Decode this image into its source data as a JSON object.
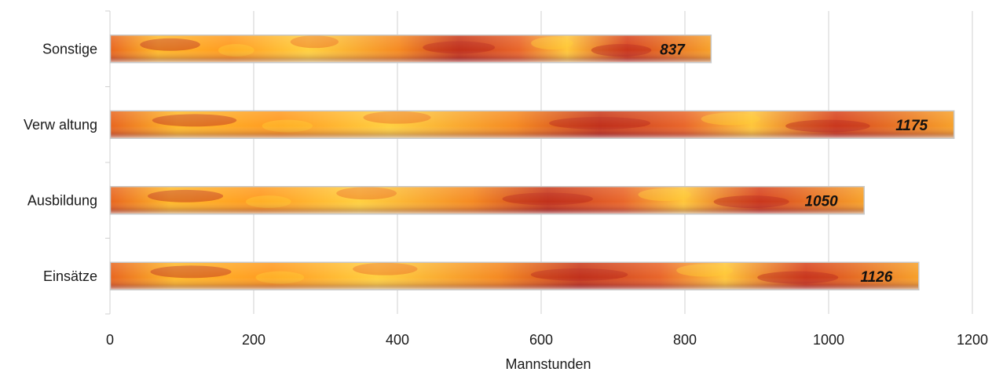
{
  "chart_data": {
    "type": "bar",
    "orientation": "horizontal",
    "categories": [
      "Sonstige",
      "Verw altung",
      "Ausbildung",
      "Einsätze"
    ],
    "values": [
      837,
      1175,
      1050,
      1126
    ],
    "data_labels": [
      "837",
      "1175",
      "1050",
      "1126"
    ],
    "title": "",
    "xlabel": "Mannstunden",
    "ylabel": "",
    "xlim": [
      0,
      1200
    ],
    "x_ticks": [
      0,
      200,
      400,
      600,
      800,
      1000,
      1200
    ],
    "x_tick_labels": [
      "0",
      "200",
      "400",
      "600",
      "800",
      "1000",
      "1200"
    ],
    "grid": "vertical",
    "legend": "none"
  },
  "colors": {
    "flame_dark": "#b8261a",
    "flame_mid": "#e8651f",
    "flame_light": "#ffc92e",
    "bar_border": "#c8c8c8",
    "grid": "#d0d0d0"
  }
}
